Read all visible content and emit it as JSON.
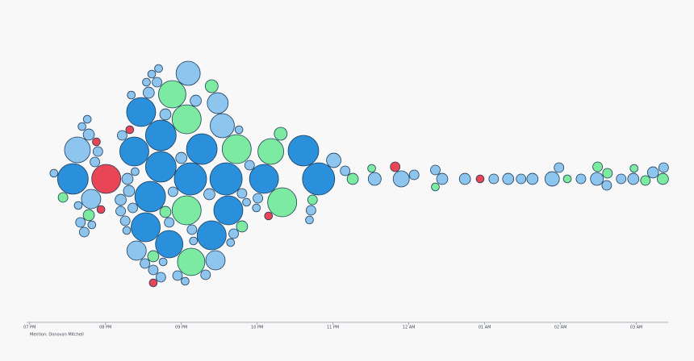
{
  "chart_data": {
    "type": "beeswarm",
    "xlabel": "Mention: Donovan Mitchell",
    "xlim": [
      18.96,
      27.42
    ],
    "xticks": [
      {
        "value": 19,
        "label": "07 PM"
      },
      {
        "value": 20,
        "label": "08 PM"
      },
      {
        "value": 21,
        "label": "09 PM"
      },
      {
        "value": 22,
        "label": "10 PM"
      },
      {
        "value": 23,
        "label": "11 PM"
      },
      {
        "value": 24,
        "label": "12 AM"
      },
      {
        "value": 25,
        "label": "01 AM"
      },
      {
        "value": 26,
        "label": "02 AM"
      },
      {
        "value": 27,
        "label": "03 AM"
      }
    ],
    "series": [
      {
        "color": "#2a90dc",
        "x": [
          19.57,
          20.73,
          21.27,
          21.62,
          20.53,
          21.12,
          21.59,
          22.09,
          22.61,
          22.81,
          20.47,
          20.59,
          21.4,
          20.38,
          20.84,
          20.73
        ],
        "sizes": [
          90,
          90,
          90,
          81,
          81,
          100,
          100,
          81,
          90,
          100,
          81,
          90,
          81,
          81,
          72,
          90
        ]
      },
      {
        "color": "#e84555",
        "x": [
          20.01,
          20.32,
          19.94,
          20.63,
          22.15,
          23.82,
          24.94,
          19.88
        ],
        "sizes": [
          81,
          6,
          6,
          6,
          6,
          9,
          6,
          6
        ]
      },
      {
        "color": "#7ceaa0",
        "x": [
          21.07,
          20.88,
          22.18,
          22.33,
          21.73,
          21.13,
          21.07,
          19.44,
          22.73,
          23.26,
          23.51,
          24.35,
          26.09,
          26.49,
          26.97,
          27.35,
          27.12,
          26.62,
          19.78,
          21.4,
          22.31,
          21.8,
          20.63,
          20.79
        ],
        "sizes": [
          81,
          72,
          64,
          81,
          81,
          72,
          81,
          9,
          9,
          12,
          6,
          6,
          6,
          9,
          6,
          12,
          9,
          9,
          12,
          16,
          16,
          12,
          12,
          12
        ]
      },
      {
        "color": "#8ec5ee",
        "x": [
          19.63,
          21.54,
          21.09,
          20.41,
          21.45,
          21.48,
          19.81,
          23.9,
          23.01,
          23.55,
          25.89,
          26.48,
          27.22,
          24.74,
          25.63,
          24.44,
          25.31,
          26.27,
          26.8,
          27.36,
          24.35,
          24.07,
          23.16,
          25.12,
          25.48,
          25.98,
          26.61,
          26.96,
          19.32,
          19.67,
          19.72,
          19.78,
          19.86,
          19.9,
          20.2,
          20.26,
          20.29,
          20.31,
          20.36,
          20.52,
          20.57,
          20.63,
          20.68,
          20.79,
          20.89,
          20.95,
          21.0,
          21.14,
          21.19,
          21.32,
          21.37,
          21.69,
          21.8,
          21.9,
          22.01,
          20.2,
          20.22,
          20.73,
          20.84,
          19.64,
          19.69,
          19.76,
          19.82,
          20.28,
          20.34,
          20.39,
          20.54,
          20.61,
          20.7,
          20.76,
          21.05,
          21.16,
          21.65,
          21.76,
          21.86,
          21.99,
          22.71,
          22.69
        ],
        "sizes": [
          64,
          56,
          56,
          36,
          36,
          42,
          36,
          25,
          20,
          16,
          20,
          16,
          12,
          12,
          12,
          12,
          12,
          9,
          9,
          9,
          9,
          9,
          9,
          9,
          9,
          9,
          9,
          12,
          6,
          9,
          9,
          12,
          9,
          9,
          9,
          9,
          12,
          12,
          9,
          9,
          12,
          9,
          9,
          12,
          9,
          9,
          12,
          9,
          12,
          9,
          12,
          9,
          9,
          9,
          9,
          12,
          9,
          9,
          9,
          6,
          6,
          6,
          6,
          6,
          6,
          6,
          6,
          6,
          6,
          6,
          6,
          6,
          6,
          6,
          6,
          6,
          9,
          6
        ]
      }
    ]
  }
}
